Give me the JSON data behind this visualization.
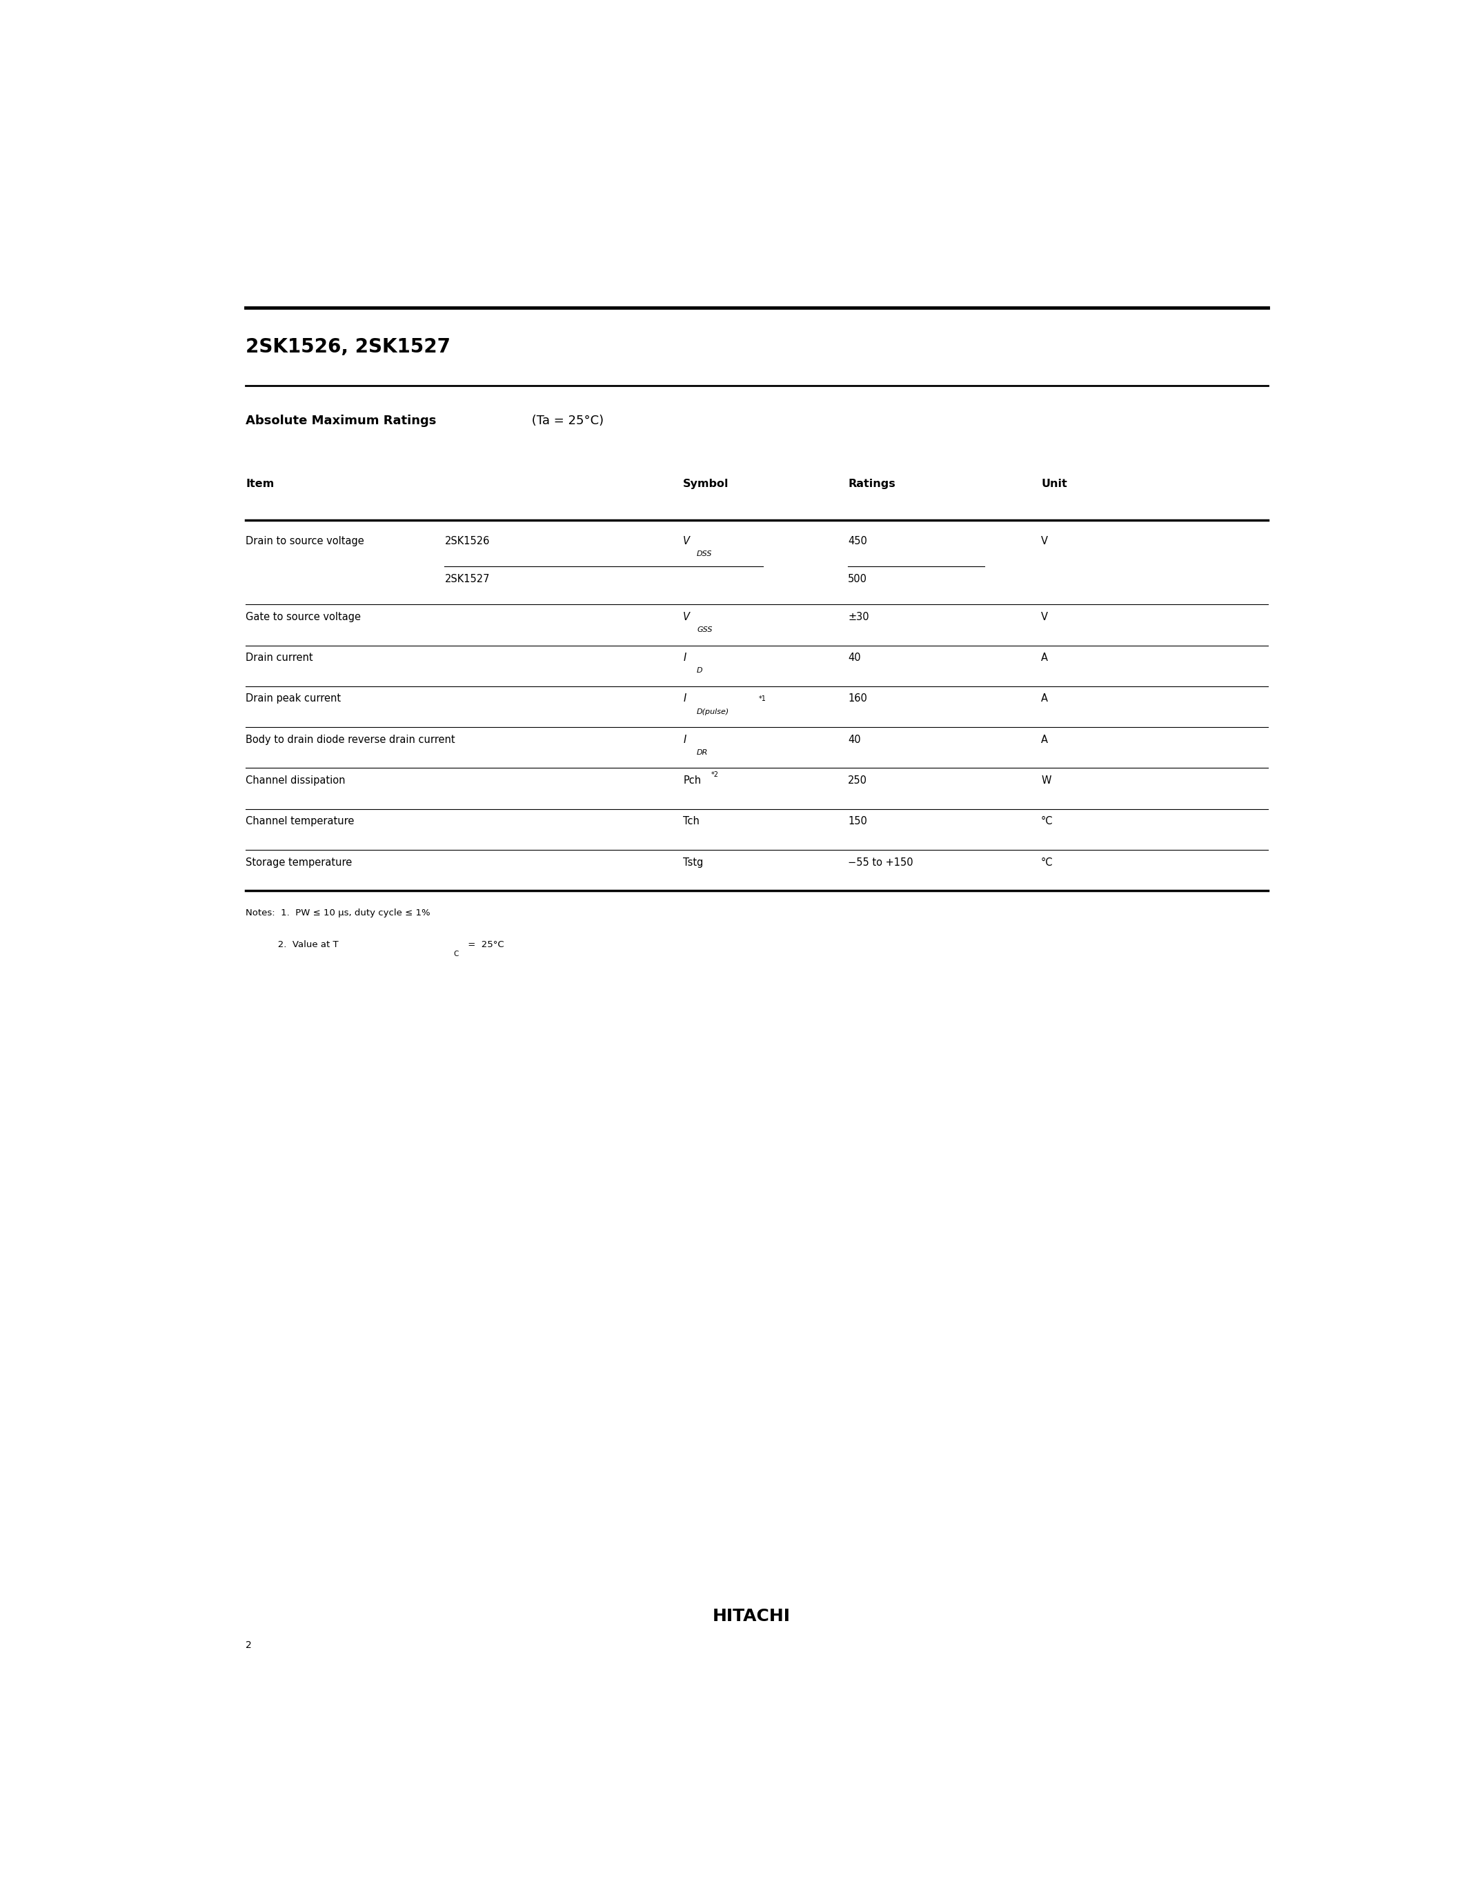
{
  "title": "2SK1526, 2SK1527",
  "section_title_bold": "Absolute Maximum Ratings",
  "section_title_normal": " (Ta = 25°C)",
  "table_headers": [
    "Item",
    "Symbol",
    "Ratings",
    "Unit"
  ],
  "rows": [
    {
      "item": "Drain to source voltage",
      "sub_item": "2SK1526",
      "sub_item2": "2SK1527",
      "symbol_main": "V",
      "symbol_sub": "DSS",
      "symbol_sup": "",
      "ratings": "450",
      "ratings2": "500",
      "unit": "V",
      "has_subrow": true
    },
    {
      "item": "Gate to source voltage",
      "symbol_main": "V",
      "symbol_sub": "GSS",
      "symbol_sup": "",
      "ratings": "±30",
      "unit": "V",
      "has_subrow": false
    },
    {
      "item": "Drain current",
      "symbol_main": "I",
      "symbol_sub": "D",
      "symbol_sup": "",
      "ratings": "40",
      "unit": "A",
      "has_subrow": false
    },
    {
      "item": "Drain peak current",
      "symbol_main": "I",
      "symbol_sub": "D(pulse)",
      "symbol_sup": "*1",
      "ratings": "160",
      "unit": "A",
      "has_subrow": false
    },
    {
      "item": "Body to drain diode reverse drain current",
      "symbol_main": "I",
      "symbol_sub": "DR",
      "symbol_sup": "",
      "ratings": "40",
      "unit": "A",
      "has_subrow": false
    },
    {
      "item": "Channel dissipation",
      "symbol_main": "Pch",
      "symbol_sub": "",
      "symbol_sup": "*2",
      "ratings": "250",
      "unit": "W",
      "has_subrow": false
    },
    {
      "item": "Channel temperature",
      "symbol_main": "Tch",
      "symbol_sub": "",
      "symbol_sup": "",
      "ratings": "150",
      "unit": "°C",
      "has_subrow": false
    },
    {
      "item": "Storage temperature",
      "symbol_main": "Tstg",
      "symbol_sub": "",
      "symbol_sup": "",
      "ratings": "−55 to +150",
      "unit": "°C",
      "has_subrow": false
    }
  ],
  "note1": "Notes:  1.  PW ≤ 10 μs, duty cycle ≤ 1%",
  "note2_pre": "           2.  Value at T",
  "note2_sub": "C",
  "note2_post": " =  25°C",
  "footer": "HITACHI",
  "page_number": "2",
  "bg_color": "#ffffff",
  "text_color": "#000000"
}
